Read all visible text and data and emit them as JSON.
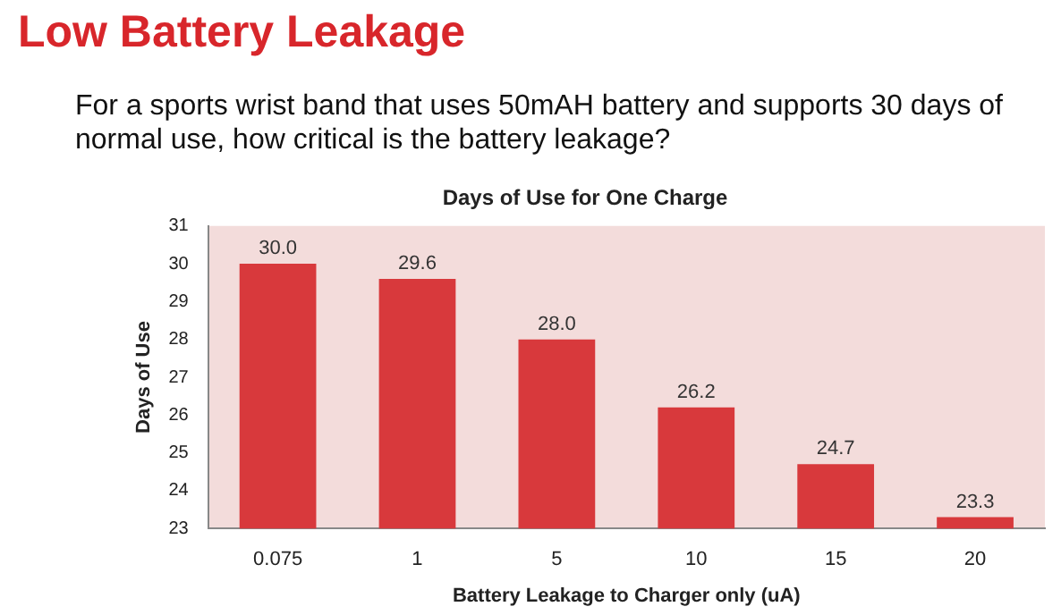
{
  "chart_data": {
    "type": "bar",
    "title": "Days of Use for One Charge",
    "xlabel": "Battery Leakage to Charger only (uA)",
    "ylabel": "Days of Use",
    "annotations": [
      "Low Battery Leakage",
      "For a sports wrist band that uses 50mAH battery and supports 30 days of normal use, how critical is the battery leakage?"
    ],
    "categories": [
      "0.075",
      "1",
      "5",
      "10",
      "15",
      "20"
    ],
    "values": [
      30.0,
      29.6,
      28.0,
      26.2,
      24.7,
      23.3
    ],
    "value_labels": [
      "30.0",
      "29.6",
      "28.0",
      "26.2",
      "24.7",
      "23.3"
    ],
    "color": "#d8393c",
    "ylim": [
      23,
      31
    ],
    "yticks": [
      23,
      24,
      25,
      26,
      27,
      28,
      29,
      30,
      31
    ],
    "grid": false,
    "legend": false
  }
}
